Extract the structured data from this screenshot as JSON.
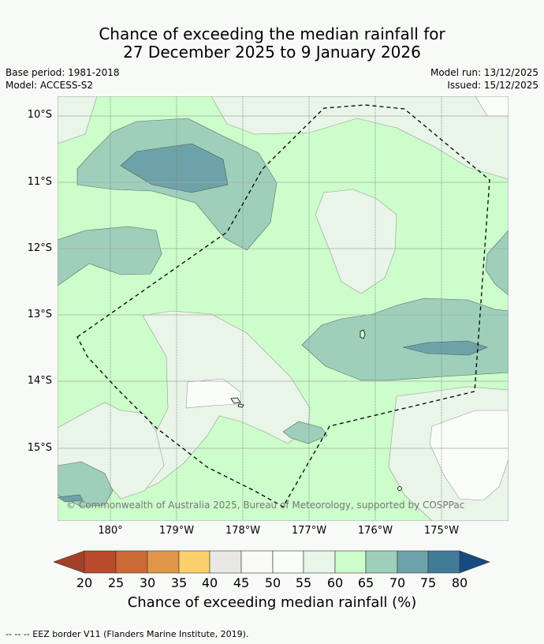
{
  "title": {
    "line1": "Chance of exceeding the median rainfall for",
    "line2": "27 December 2025 to 9 January 2026"
  },
  "meta": {
    "base_period": "Base period: 1981-2018",
    "model": "Model: ACCESS-S2",
    "model_run": "Model run: 13/12/2025",
    "issued": "Issued: 15/12/2025"
  },
  "map": {
    "latitudes": [
      "10°S",
      "11°S",
      "12°S",
      "13°S",
      "14°S",
      "15°S"
    ],
    "longitudes": [
      "180°",
      "179°W",
      "178°W",
      "177°W",
      "176°W",
      "175°W"
    ],
    "copyright": "© Commonwealth of Australia 2025, Bureau of Meteorology, supported by COSPPac"
  },
  "colorbar": {
    "ticks": [
      "20",
      "25",
      "30",
      "35",
      "40",
      "45",
      "50",
      "55",
      "60",
      "65",
      "70",
      "75",
      "80"
    ],
    "colors": [
      "#a3402a",
      "#b94a2b",
      "#cc6a36",
      "#e09649",
      "#fdd06e",
      "#e9e8e4",
      "#fafbf8",
      "#fafcf8",
      "#e8f5e8",
      "#ccfdca",
      "#9ecfbb",
      "#6da3a8",
      "#427b98",
      "#174b7e"
    ],
    "label": "Chance of exceeding median rainfall (%)"
  },
  "legend": {
    "eez": "--  --  -- EEZ border V11 (Flanders Marine Institute, 2019)."
  }
}
